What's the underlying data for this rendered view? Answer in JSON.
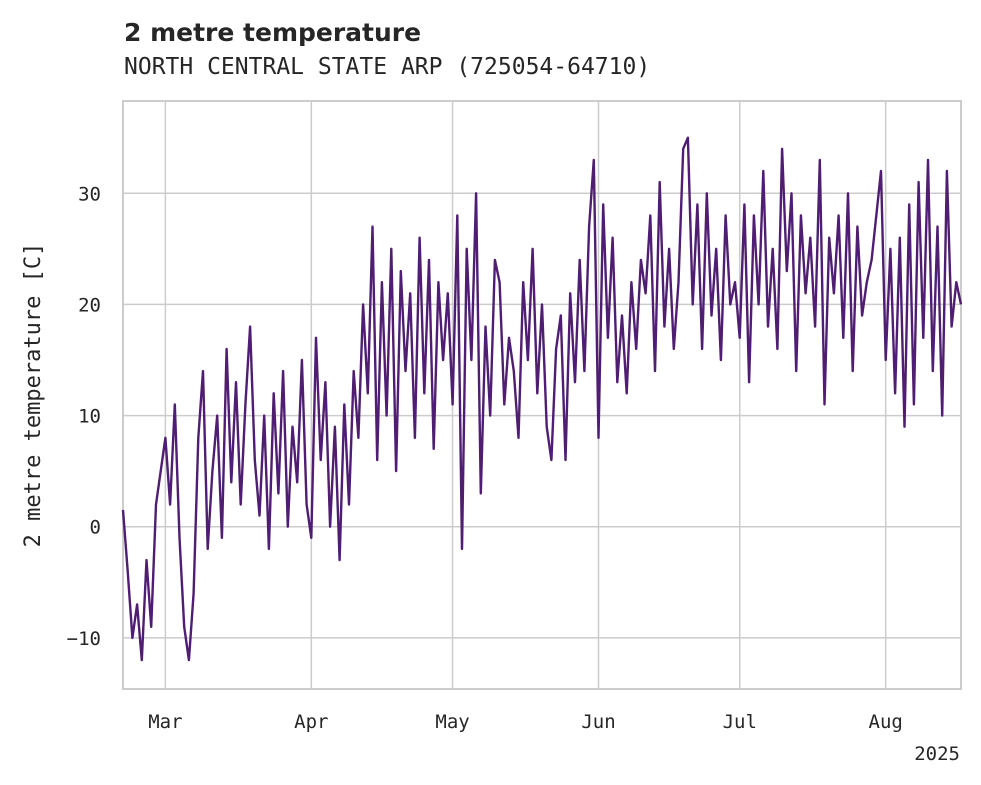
{
  "chart_data": {
    "type": "line",
    "title": "2 metre temperature",
    "subtitle": "NORTH CENTRAL STATE ARP (725054-64710)",
    "ylabel": "2 metre temperature [C]",
    "xlabel": "",
    "x_range": [
      "2025-02-20",
      "2025-08-17"
    ],
    "ylim": [
      -14.6,
      38.3
    ],
    "yticks": [
      -10,
      0,
      10,
      20,
      30
    ],
    "xticks": [
      {
        "date": "2025-03-01",
        "label": "Mar"
      },
      {
        "date": "2025-04-01",
        "label": "Apr"
      },
      {
        "date": "2025-05-01",
        "label": "May"
      },
      {
        "date": "2025-06-01",
        "label": "Jun"
      },
      {
        "date": "2025-07-01",
        "label": "Jul"
      },
      {
        "date": "2025-08-01",
        "label": "Aug"
      }
    ],
    "x_offset_label": "2025",
    "grid": true,
    "color": "#4f1d72",
    "series": [
      {
        "x": [
          "2025-02-20",
          "2025-02-21",
          "2025-02-22",
          "2025-02-23",
          "2025-02-24",
          "2025-02-25",
          "2025-02-26",
          "2025-02-27",
          "2025-02-28",
          "2025-03-01",
          "2025-03-02",
          "2025-03-03",
          "2025-03-04",
          "2025-03-05",
          "2025-03-06",
          "2025-03-07",
          "2025-03-08",
          "2025-03-09",
          "2025-03-10",
          "2025-03-11",
          "2025-03-12",
          "2025-03-13",
          "2025-03-14",
          "2025-03-15",
          "2025-03-16",
          "2025-03-17",
          "2025-03-18",
          "2025-03-19",
          "2025-03-20",
          "2025-03-21",
          "2025-03-22",
          "2025-03-23",
          "2025-03-24",
          "2025-03-25",
          "2025-03-26",
          "2025-03-27",
          "2025-03-28",
          "2025-03-29",
          "2025-03-30",
          "2025-03-31",
          "2025-04-01",
          "2025-04-02",
          "2025-04-03",
          "2025-04-04",
          "2025-04-05",
          "2025-04-06",
          "2025-04-07",
          "2025-04-08",
          "2025-04-09",
          "2025-04-10",
          "2025-04-11",
          "2025-04-12",
          "2025-04-13",
          "2025-04-14",
          "2025-04-15",
          "2025-04-16",
          "2025-04-17",
          "2025-04-18",
          "2025-04-19",
          "2025-04-20",
          "2025-04-21",
          "2025-04-22",
          "2025-04-23",
          "2025-04-24",
          "2025-04-25",
          "2025-04-26",
          "2025-04-27",
          "2025-04-28",
          "2025-04-29",
          "2025-04-30",
          "2025-05-01",
          "2025-05-02",
          "2025-05-03",
          "2025-05-04",
          "2025-05-05",
          "2025-05-06",
          "2025-05-07",
          "2025-05-08",
          "2025-05-09",
          "2025-05-10",
          "2025-05-11",
          "2025-05-12",
          "2025-05-13",
          "2025-05-14",
          "2025-05-15",
          "2025-05-16",
          "2025-05-17",
          "2025-05-18",
          "2025-05-19",
          "2025-05-20",
          "2025-05-21",
          "2025-05-22",
          "2025-05-23",
          "2025-05-24",
          "2025-05-25",
          "2025-05-26",
          "2025-05-27",
          "2025-05-28",
          "2025-05-29",
          "2025-05-30",
          "2025-05-31",
          "2025-06-01",
          "2025-06-02",
          "2025-06-03",
          "2025-06-04",
          "2025-06-05",
          "2025-06-06",
          "2025-06-07",
          "2025-06-08",
          "2025-06-09",
          "2025-06-10",
          "2025-06-11",
          "2025-06-12",
          "2025-06-13",
          "2025-06-14",
          "2025-06-15",
          "2025-06-16",
          "2025-06-17",
          "2025-06-18",
          "2025-06-19",
          "2025-06-20",
          "2025-06-21",
          "2025-06-22",
          "2025-06-23",
          "2025-06-24",
          "2025-06-25",
          "2025-06-26",
          "2025-06-27",
          "2025-06-28",
          "2025-06-29",
          "2025-06-30",
          "2025-07-01",
          "2025-07-02",
          "2025-07-03",
          "2025-07-04",
          "2025-07-05",
          "2025-07-06",
          "2025-07-07",
          "2025-07-08",
          "2025-07-09",
          "2025-07-10",
          "2025-07-11",
          "2025-07-12",
          "2025-07-13",
          "2025-07-14",
          "2025-07-15",
          "2025-07-16",
          "2025-07-17",
          "2025-07-18",
          "2025-07-19",
          "2025-07-20",
          "2025-07-21",
          "2025-07-22",
          "2025-07-23",
          "2025-07-24",
          "2025-07-25",
          "2025-07-26",
          "2025-07-27",
          "2025-07-28",
          "2025-07-29",
          "2025-07-30",
          "2025-07-31",
          "2025-08-01",
          "2025-08-02",
          "2025-08-03",
          "2025-08-04",
          "2025-08-05",
          "2025-08-06",
          "2025-08-07",
          "2025-08-08",
          "2025-08-09",
          "2025-08-10",
          "2025-08-11",
          "2025-08-12",
          "2025-08-13",
          "2025-08-14",
          "2025-08-15",
          "2025-08-16",
          "2025-08-17"
        ],
        "y": [
          1.5,
          -4,
          -10,
          -7,
          -12,
          -3,
          -9,
          2,
          5,
          8,
          2,
          11,
          -1,
          -9,
          -12,
          -6,
          8,
          14,
          -2,
          5,
          10,
          -1,
          16,
          4,
          13,
          2,
          11,
          18,
          6,
          1,
          10,
          -2,
          12,
          3,
          14,
          0,
          9,
          4,
          15,
          2,
          -1,
          17,
          6,
          13,
          0,
          9,
          -3,
          11,
          2,
          14,
          8,
          20,
          12,
          27,
          6,
          22,
          10,
          25,
          5,
          23,
          14,
          21,
          8,
          26,
          12,
          24,
          7,
          22,
          15,
          21,
          11,
          28,
          -2,
          25,
          15,
          30,
          3,
          18,
          10,
          24,
          22,
          11,
          17,
          14,
          8,
          22,
          15,
          25,
          12,
          20,
          9,
          6,
          16,
          19,
          6,
          21,
          13,
          24,
          14,
          27,
          33,
          8,
          29,
          17,
          26,
          13,
          19,
          12,
          22,
          16,
          24,
          21,
          28,
          14,
          31,
          18,
          25,
          16,
          22,
          34,
          35,
          20,
          29,
          16,
          30,
          19,
          25,
          15,
          28,
          20,
          22,
          17,
          29,
          13,
          28,
          20,
          32,
          18,
          25,
          16,
          34,
          23,
          30,
          14,
          28,
          21,
          26,
          18,
          33,
          11,
          26,
          21,
          28,
          17,
          30,
          14,
          27,
          19,
          22,
          24,
          28,
          32,
          15,
          25,
          12,
          26,
          9,
          29,
          11,
          31,
          17,
          33,
          14,
          27,
          10,
          32,
          18,
          22,
          20
        ]
      }
    ]
  }
}
